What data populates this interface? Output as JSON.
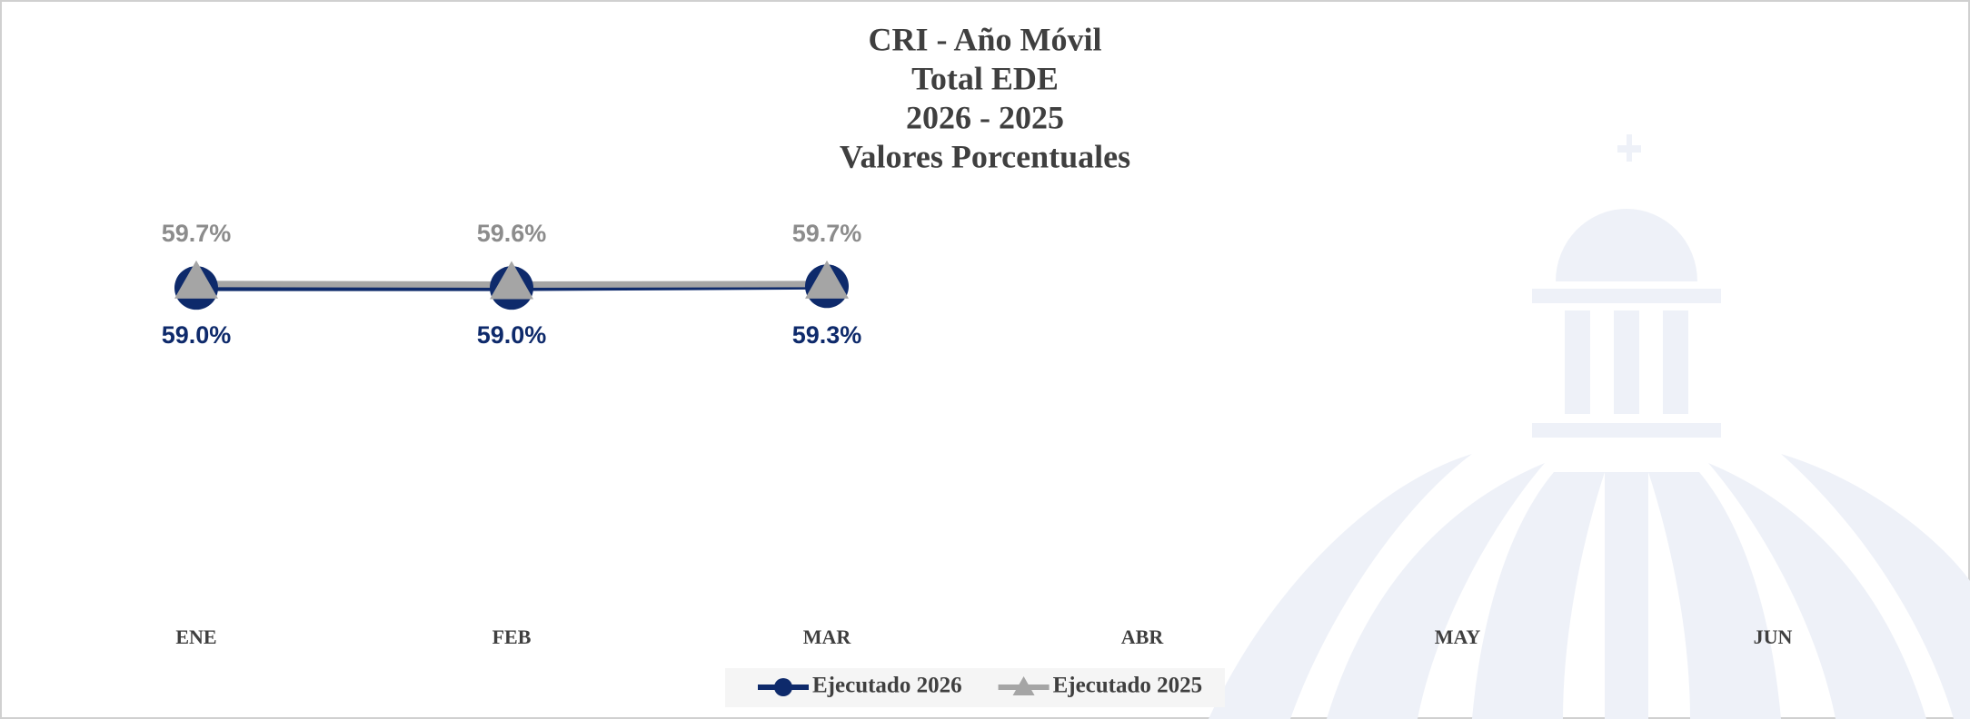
{
  "chart_data": {
    "type": "line",
    "title": [
      "CRI - Año Móvil",
      "Total EDE",
      "2026 - 2025",
      "Valores Porcentuales"
    ],
    "categories": [
      "ENE",
      "FEB",
      "MAR",
      "ABR",
      "MAY",
      "JUN"
    ],
    "series": [
      {
        "name": "Ejecutado 2026",
        "color": "#0e2a6b",
        "marker": "circle",
        "values": [
          59.0,
          59.0,
          59.3,
          null,
          null,
          null
        ],
        "value_labels": [
          "59.0%",
          "59.0%",
          "59.3%",
          null,
          null,
          null
        ]
      },
      {
        "name": "Ejecutado 2025",
        "color": "#a5a5a5",
        "marker": "triangle",
        "values": [
          59.7,
          59.6,
          59.7,
          null,
          null,
          null
        ],
        "value_labels": [
          "59.7%",
          "59.6%",
          "59.7%",
          null,
          null,
          null
        ]
      }
    ],
    "legend": "bottom"
  }
}
